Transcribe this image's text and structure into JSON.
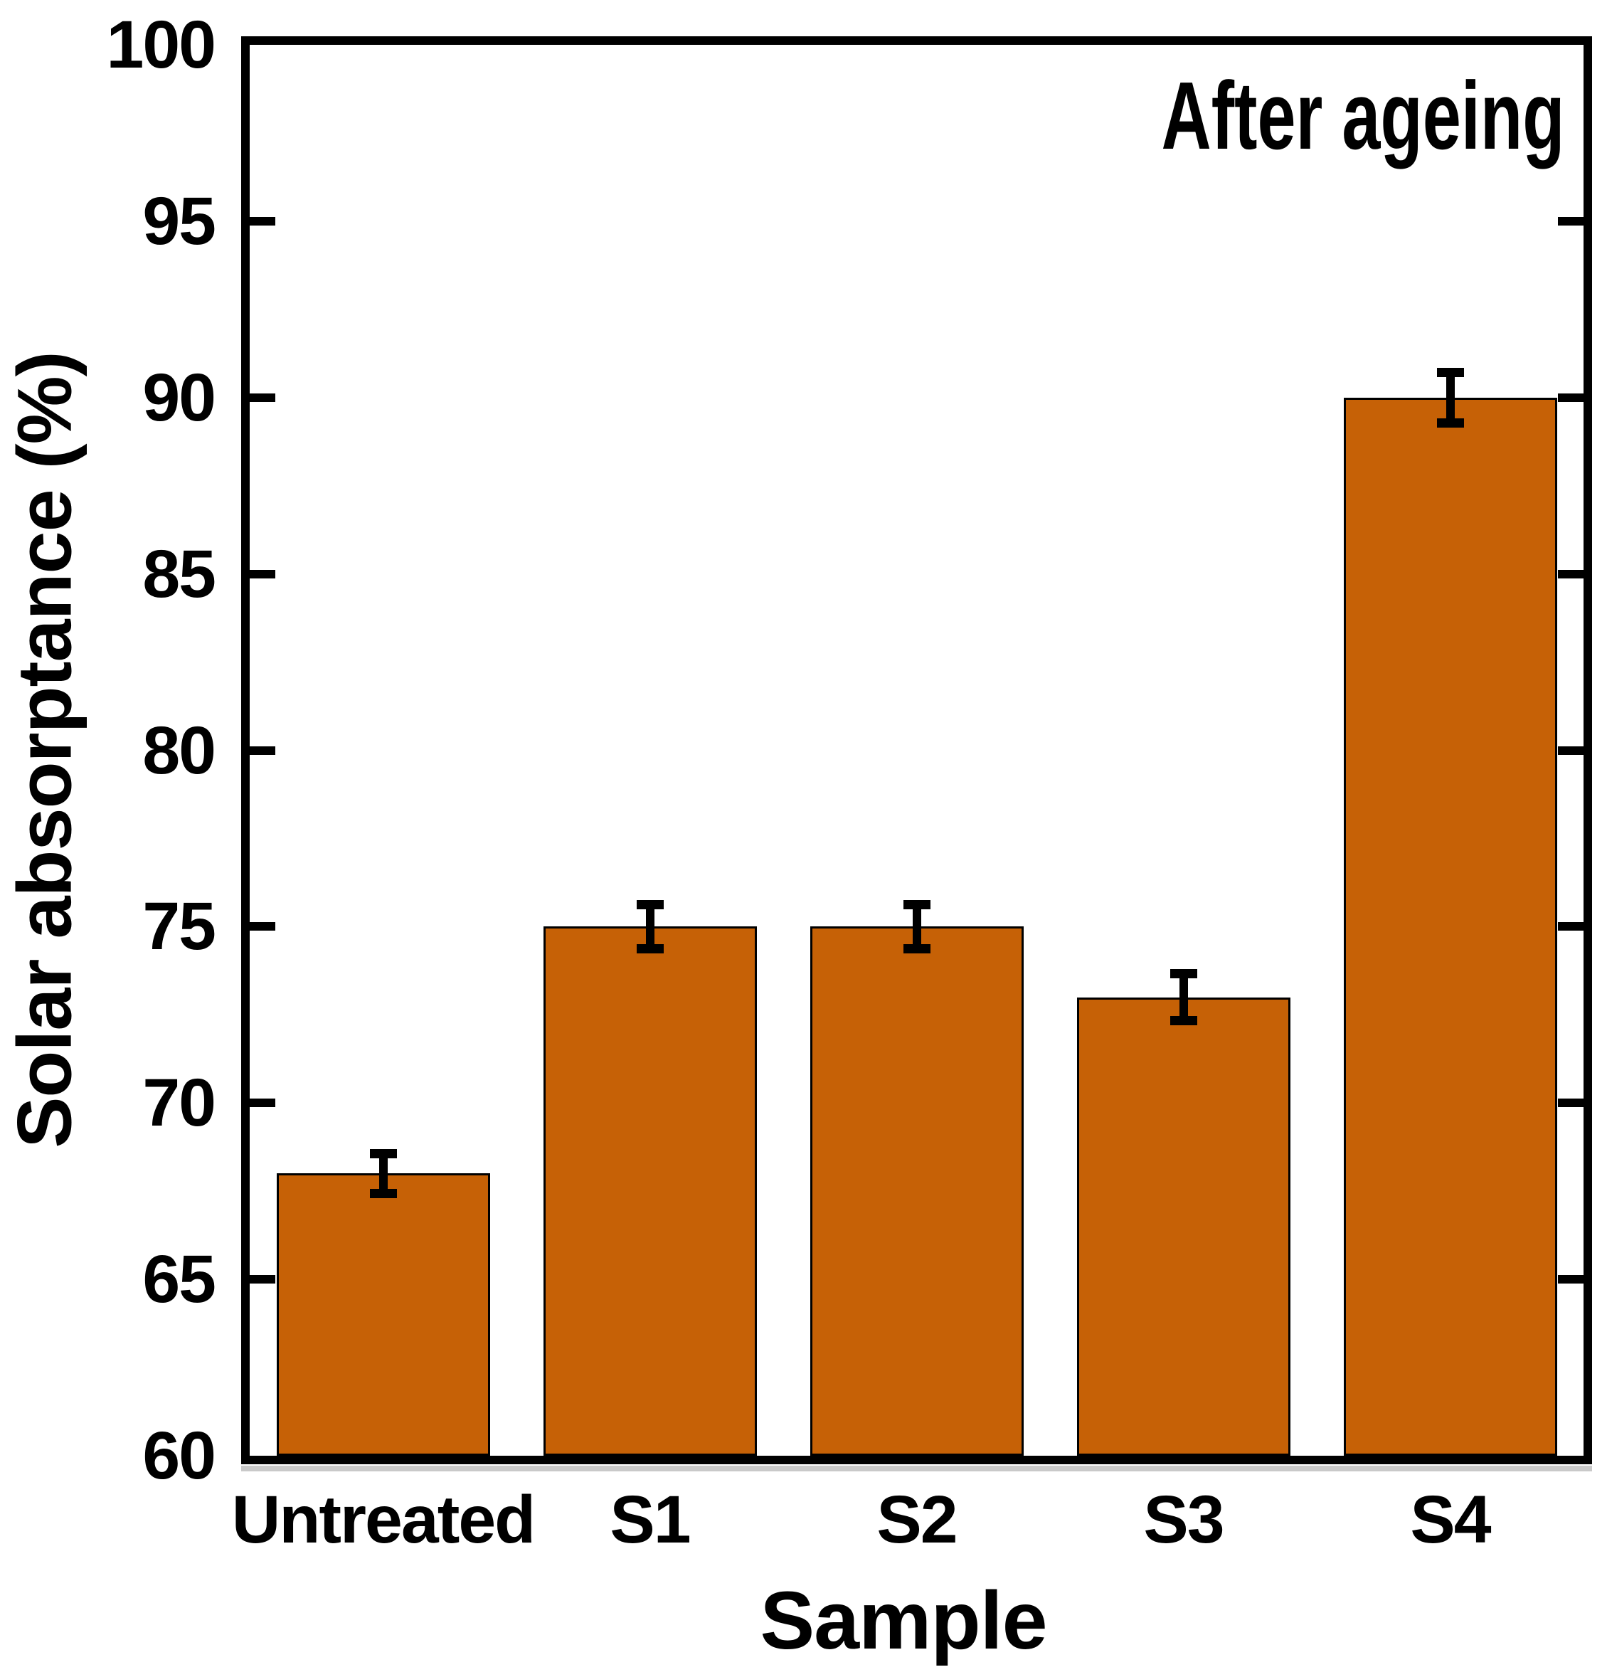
{
  "figure": {
    "annotation": "After ageing",
    "xlabel": "Sample",
    "ylabel": "Solar absorptance (%)"
  },
  "chart_data": {
    "type": "bar",
    "title": "",
    "annotation": "After ageing",
    "xlabel": "Sample",
    "ylabel": "Solar absorptance (%)",
    "categories": [
      "Untreated",
      "S1",
      "S2",
      "S3",
      "S4"
    ],
    "values": [
      68,
      75,
      75,
      73,
      90
    ],
    "errors": [
      0.7,
      0.75,
      0.75,
      0.8,
      0.85
    ],
    "ylim": [
      60,
      100
    ],
    "yticks": [
      60,
      65,
      70,
      75,
      80,
      85,
      90,
      95,
      100
    ],
    "ytick_step": 5,
    "grid": false,
    "legend_position": "none",
    "bar_fill": "#C66106",
    "bar_edge": "#000000",
    "error_color": "#000000",
    "axis_color": "#000000",
    "text_color": "#000000",
    "background": "#FFFFFF"
  }
}
